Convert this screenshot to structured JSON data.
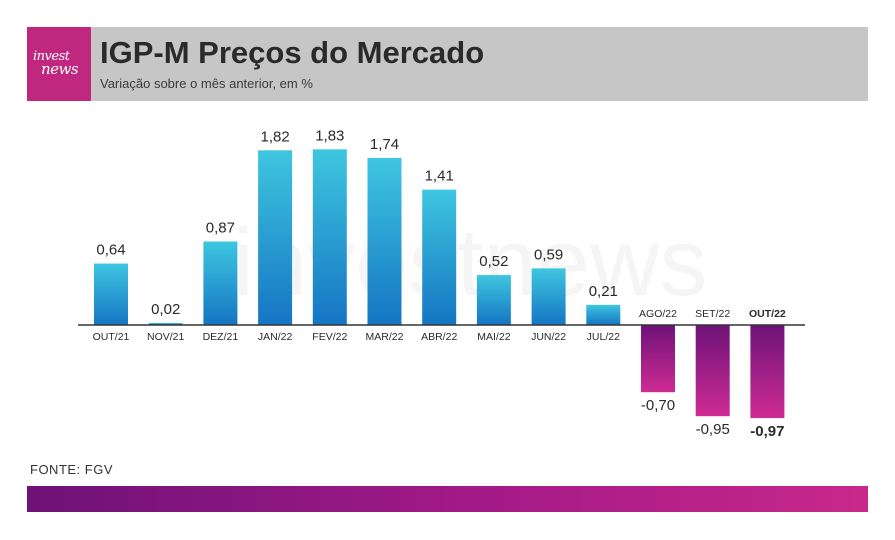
{
  "header": {
    "logo_top": "invest",
    "logo_bottom": "news",
    "title": "IGP-M Preços do Mercado",
    "subtitle": "Variação sobre o mês anterior, em %"
  },
  "watermark": "investnews",
  "source": "FONTE: FGV",
  "colors": {
    "accent": "#c0287f",
    "positive_top": "#3ec6e0",
    "positive_bottom": "#1575c3",
    "negative_top": "#6d1278",
    "negative_bottom": "#cf2b93",
    "header_band": "#c6c6c6"
  },
  "chart_data": {
    "type": "bar",
    "title": "IGP-M Preços do Mercado",
    "subtitle": "Variação sobre o mês anterior, em %",
    "categories": [
      "OUT/21",
      "NOV/21",
      "DEZ/21",
      "JAN/22",
      "FEV/22",
      "MAR/22",
      "ABR/22",
      "MAI/22",
      "JUN/22",
      "JUL/22",
      "AGO/22",
      "SET/22",
      "OUT/22"
    ],
    "values": [
      0.64,
      0.02,
      0.87,
      1.82,
      1.83,
      1.74,
      1.41,
      0.52,
      0.59,
      0.21,
      -0.7,
      -0.95,
      -0.97
    ],
    "labels": [
      "0,64",
      "0,02",
      "0,87",
      "1,82",
      "1,83",
      "1,74",
      "1,41",
      "0,52",
      "0,59",
      "0,21",
      "-0,70",
      "-0,95",
      "-0,97"
    ],
    "highlight": "OUT/22",
    "ylim": [
      -1.0,
      2.0
    ],
    "grid": false,
    "legend": "none"
  }
}
